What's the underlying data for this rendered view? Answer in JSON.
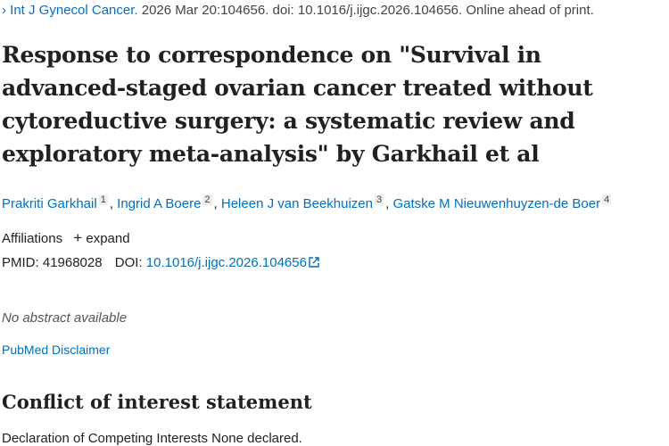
{
  "citation": {
    "journal": "Int J Gynecol Cancer.",
    "details": " 2026 Mar 20:104656. doi: 10.1016/j.ijgc.2026.104656. Online ahead of print."
  },
  "title": "Response to correspondence on \"Survival in advanced-staged ovarian cancer treated without cytoreductive surgery: a systematic review and exploratory meta-analysis\" by Garkhail et al",
  "authors": [
    {
      "name": "Prakriti Garkhail",
      "aff": "1"
    },
    {
      "name": "Ingrid A Boere",
      "aff": "2"
    },
    {
      "name": "Heleen J van Beekhuizen",
      "aff": "3"
    },
    {
      "name": "Gatske M Nieuwenhuyzen-de Boer",
      "aff": "4"
    }
  ],
  "affiliations": {
    "label": "Affiliations",
    "expand": "expand"
  },
  "ids": {
    "pmid_label": "PMID:",
    "pmid": "41968028",
    "doi_label": "DOI:",
    "doi": "10.1016/j.ijgc.2026.104656"
  },
  "no_abstract": "No abstract available",
  "disclaimer": "PubMed Disclaimer",
  "coi": {
    "heading": "Conflict of interest statement",
    "text": "Declaration of Competing Interests None declared."
  }
}
